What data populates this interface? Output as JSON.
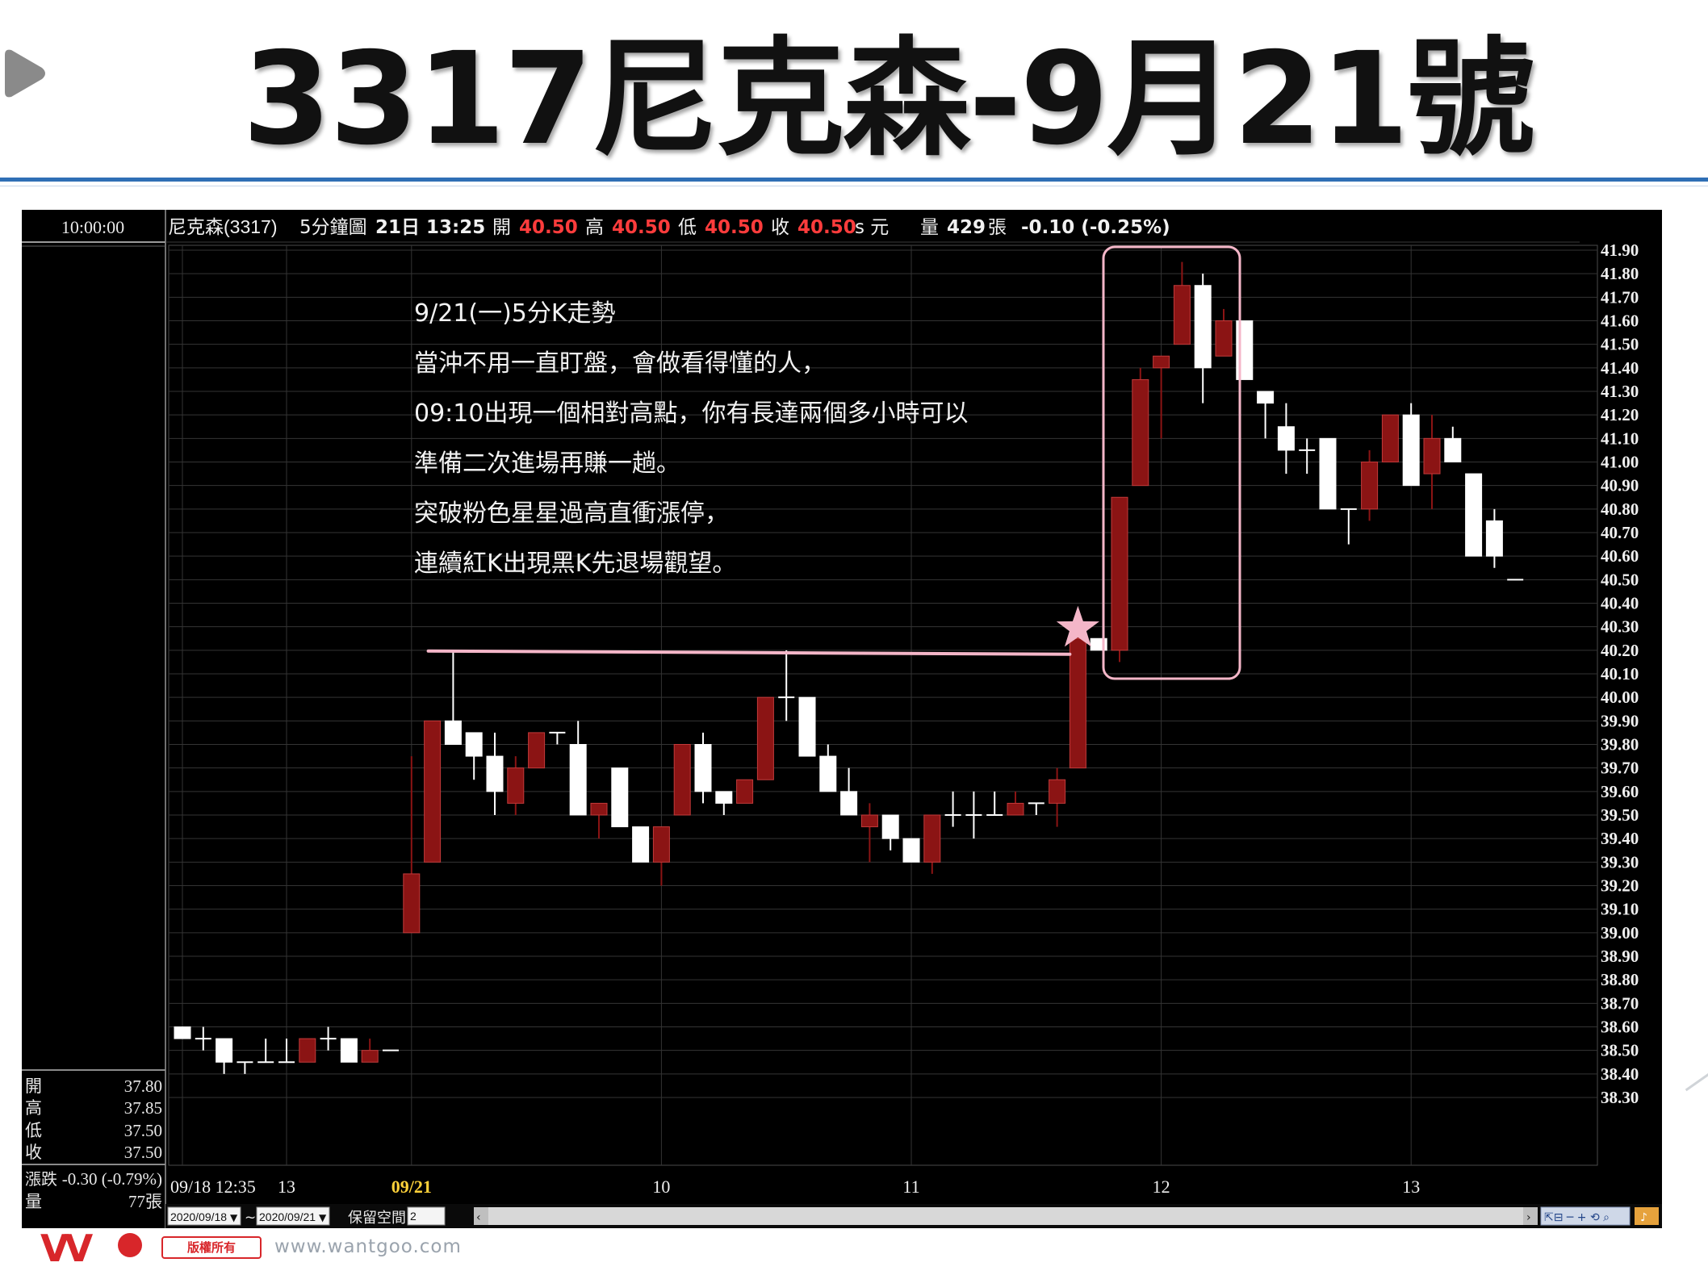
{
  "slide": {
    "title": "3317尼克森-9月21號",
    "play_icon": "play-arrow-icon",
    "watermark": {
      "brand": "VV",
      "badge": "版權所有",
      "url": "www.wantgoo.com"
    }
  },
  "panel": {
    "clock": "10:00:00",
    "info_name": "尼克森(3317)",
    "info_period": "5分鐘圖",
    "info_time": "21日 13:25",
    "open_label": "開",
    "open_value": "40.50",
    "high_label": "高",
    "high_value": "40.50",
    "low_label": "低",
    "low_value": "40.50",
    "close_label": "收",
    "close_value": "40.50",
    "unit": "s 元",
    "vol_label": "量",
    "vol_value": "429",
    "vol_unit": "張",
    "change": "-0.10 (-0.25%)",
    "side": {
      "open_label": "開",
      "open_value": "37.80",
      "high_label": "高",
      "high_value": "37.85",
      "low_label": "低",
      "low_value": "37.50",
      "close_label": "收",
      "close_value": "37.50",
      "change_label": "漲跌",
      "change_value": "-0.30 (-0.79%)",
      "vol_label": "量",
      "vol_value": "77張"
    },
    "toolbar": {
      "date_from": "2020/09/18",
      "tilde": "~",
      "date_to": "2020/09/21",
      "reserve_label": "保留空間",
      "reserve_value": "2"
    }
  },
  "annotation": {
    "lines": [
      "9/21(一)5分K走勢",
      "當沖不用一直盯盤，會做看得懂的人，",
      "09:10出現一個相對高點，你有長達兩個多小時可以",
      "準備二次進場再賺一趟。",
      "突破粉色星星過高直衝漲停，",
      "連續紅K出現黑K先退場觀望。"
    ]
  },
  "colors": {
    "background": "#000000",
    "up": "#8b1414",
    "down": "#ffffff",
    "grid": "#343434",
    "highlight": "#f4b6c8",
    "price_red": "#ff3c3c"
  },
  "chart_data": {
    "type": "candlestick",
    "ylim": [
      38.3,
      41.9
    ],
    "y_ticks": [
      "41.90",
      "41.80",
      "41.70",
      "41.60",
      "41.50",
      "41.40",
      "41.30",
      "41.20",
      "41.10",
      "41.00",
      "40.90",
      "40.80",
      "40.70",
      "40.60",
      "40.50",
      "40.40",
      "40.30",
      "40.20",
      "40.10",
      "40.00",
      "39.90",
      "39.80",
      "39.70",
      "39.60",
      "39.50",
      "39.40",
      "39.30",
      "39.20",
      "39.10",
      "39.00",
      "38.90",
      "38.80",
      "38.70",
      "38.60",
      "38.50",
      "38.40",
      "38.30"
    ],
    "x_ticks": [
      "09/18 12:35",
      "13",
      "09/21",
      "10",
      "11",
      "12",
      "13"
    ],
    "x_tick_bar_index": [
      0,
      5,
      11,
      23,
      35,
      47,
      59
    ],
    "resistance_price": 40.19,
    "star_bar_index": 43,
    "highlight_box": {
      "from_bar": 45,
      "to_bar": 50,
      "price_low": 40.1,
      "price_high": 41.9
    },
    "candles": [
      {
        "o": 38.6,
        "h": 38.6,
        "l": 38.55,
        "c": 38.55
      },
      {
        "o": 38.55,
        "h": 38.6,
        "l": 38.5,
        "c": 38.55
      },
      {
        "o": 38.55,
        "h": 38.55,
        "l": 38.4,
        "c": 38.45
      },
      {
        "o": 38.45,
        "h": 38.45,
        "l": 38.4,
        "c": 38.45
      },
      {
        "o": 38.45,
        "h": 38.55,
        "l": 38.45,
        "c": 38.45
      },
      {
        "o": 38.45,
        "h": 38.55,
        "l": 38.45,
        "c": 38.45
      },
      {
        "o": 38.45,
        "h": 38.55,
        "l": 38.45,
        "c": 38.55
      },
      {
        "o": 38.55,
        "h": 38.6,
        "l": 38.5,
        "c": 38.55
      },
      {
        "o": 38.55,
        "h": 38.55,
        "l": 38.45,
        "c": 38.45
      },
      {
        "o": 38.45,
        "h": 38.55,
        "l": 38.45,
        "c": 38.5
      },
      {
        "o": 38.5,
        "h": 38.5,
        "l": 38.5,
        "c": 38.5
      },
      {
        "o": 39.0,
        "h": 39.75,
        "l": 39.0,
        "c": 39.25
      },
      {
        "o": 39.3,
        "h": 39.9,
        "l": 39.3,
        "c": 39.9
      },
      {
        "o": 39.9,
        "h": 40.2,
        "l": 39.8,
        "c": 39.8
      },
      {
        "o": 39.85,
        "h": 39.85,
        "l": 39.65,
        "c": 39.75
      },
      {
        "o": 39.75,
        "h": 39.85,
        "l": 39.5,
        "c": 39.6
      },
      {
        "o": 39.55,
        "h": 39.75,
        "l": 39.5,
        "c": 39.7
      },
      {
        "o": 39.7,
        "h": 39.85,
        "l": 39.7,
        "c": 39.85
      },
      {
        "o": 39.85,
        "h": 39.85,
        "l": 39.8,
        "c": 39.85
      },
      {
        "o": 39.8,
        "h": 39.9,
        "l": 39.5,
        "c": 39.5
      },
      {
        "o": 39.5,
        "h": 39.55,
        "l": 39.4,
        "c": 39.55
      },
      {
        "o": 39.7,
        "h": 39.7,
        "l": 39.45,
        "c": 39.45
      },
      {
        "o": 39.45,
        "h": 39.45,
        "l": 39.3,
        "c": 39.3
      },
      {
        "o": 39.3,
        "h": 39.45,
        "l": 39.2,
        "c": 39.45
      },
      {
        "o": 39.5,
        "h": 39.8,
        "l": 39.5,
        "c": 39.8
      },
      {
        "o": 39.8,
        "h": 39.85,
        "l": 39.55,
        "c": 39.6
      },
      {
        "o": 39.6,
        "h": 39.6,
        "l": 39.5,
        "c": 39.55
      },
      {
        "o": 39.55,
        "h": 39.65,
        "l": 39.55,
        "c": 39.65
      },
      {
        "o": 39.65,
        "h": 40.0,
        "l": 39.65,
        "c": 40.0
      },
      {
        "o": 40.0,
        "h": 40.2,
        "l": 39.9,
        "c": 40.0
      },
      {
        "o": 40.0,
        "h": 40.0,
        "l": 39.75,
        "c": 39.75
      },
      {
        "o": 39.75,
        "h": 39.8,
        "l": 39.6,
        "c": 39.6
      },
      {
        "o": 39.6,
        "h": 39.7,
        "l": 39.5,
        "c": 39.5
      },
      {
        "o": 39.45,
        "h": 39.55,
        "l": 39.3,
        "c": 39.5
      },
      {
        "o": 39.5,
        "h": 39.5,
        "l": 39.35,
        "c": 39.4
      },
      {
        "o": 39.4,
        "h": 39.4,
        "l": 39.3,
        "c": 39.3
      },
      {
        "o": 39.3,
        "h": 39.5,
        "l": 39.25,
        "c": 39.5
      },
      {
        "o": 39.5,
        "h": 39.6,
        "l": 39.45,
        "c": 39.5
      },
      {
        "o": 39.5,
        "h": 39.6,
        "l": 39.4,
        "c": 39.5
      },
      {
        "o": 39.5,
        "h": 39.6,
        "l": 39.5,
        "c": 39.5
      },
      {
        "o": 39.5,
        "h": 39.6,
        "l": 39.5,
        "c": 39.55
      },
      {
        "o": 39.55,
        "h": 39.55,
        "l": 39.5,
        "c": 39.55
      },
      {
        "o": 39.55,
        "h": 39.7,
        "l": 39.45,
        "c": 39.65
      },
      {
        "o": 39.7,
        "h": 40.3,
        "l": 39.7,
        "c": 40.25
      },
      {
        "o": 40.25,
        "h": 40.25,
        "l": 40.2,
        "c": 40.2
      },
      {
        "o": 40.2,
        "h": 40.85,
        "l": 40.15,
        "c": 40.85
      },
      {
        "o": 40.9,
        "h": 41.4,
        "l": 40.9,
        "c": 41.35
      },
      {
        "o": 41.4,
        "h": 41.45,
        "l": 41.1,
        "c": 41.45
      },
      {
        "o": 41.5,
        "h": 41.85,
        "l": 41.5,
        "c": 41.75
      },
      {
        "o": 41.75,
        "h": 41.8,
        "l": 41.25,
        "c": 41.4
      },
      {
        "o": 41.45,
        "h": 41.65,
        "l": 41.45,
        "c": 41.6
      },
      {
        "o": 41.6,
        "h": 41.6,
        "l": 41.35,
        "c": 41.35
      },
      {
        "o": 41.3,
        "h": 41.3,
        "l": 41.1,
        "c": 41.25
      },
      {
        "o": 41.15,
        "h": 41.25,
        "l": 40.95,
        "c": 41.05
      },
      {
        "o": 41.05,
        "h": 41.1,
        "l": 40.95,
        "c": 41.05
      },
      {
        "o": 41.1,
        "h": 41.1,
        "l": 40.8,
        "c": 40.8
      },
      {
        "o": 40.8,
        "h": 40.8,
        "l": 40.65,
        "c": 40.8
      },
      {
        "o": 40.8,
        "h": 41.05,
        "l": 40.75,
        "c": 41.0
      },
      {
        "o": 41.0,
        "h": 41.2,
        "l": 41.0,
        "c": 41.2
      },
      {
        "o": 41.2,
        "h": 41.25,
        "l": 40.9,
        "c": 40.9
      },
      {
        "o": 40.95,
        "h": 41.2,
        "l": 40.8,
        "c": 41.1
      },
      {
        "o": 41.1,
        "h": 41.15,
        "l": 41.0,
        "c": 41.0
      },
      {
        "o": 40.95,
        "h": 40.95,
        "l": 40.6,
        "c": 40.6
      },
      {
        "o": 40.75,
        "h": 40.8,
        "l": 40.55,
        "c": 40.6
      },
      {
        "o": 40.5,
        "h": 40.5,
        "l": 40.5,
        "c": 40.5
      }
    ]
  }
}
